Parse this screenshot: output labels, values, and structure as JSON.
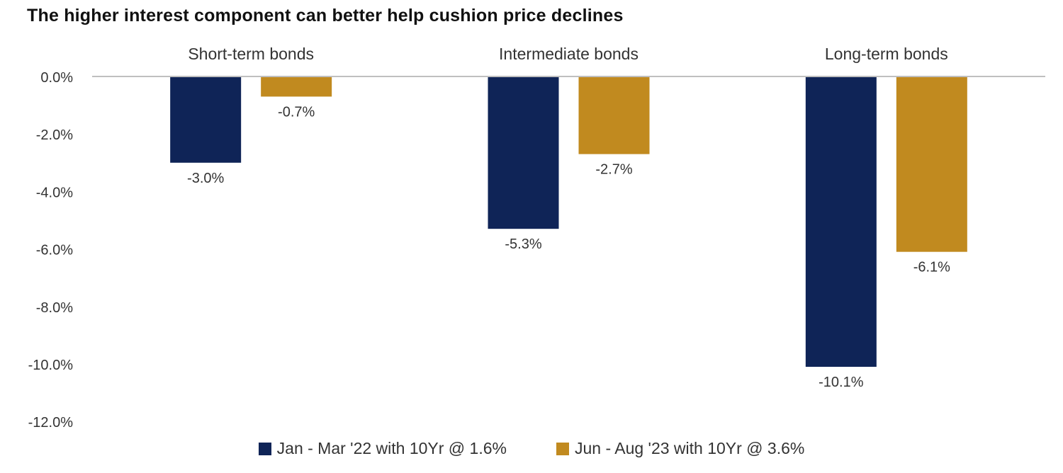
{
  "title": "The higher interest component can better help cushion price declines",
  "chart_data": {
    "type": "bar",
    "categories": [
      "Short-term bonds",
      "Intermediate bonds",
      "Long-term bonds"
    ],
    "series": [
      {
        "name": "Jan - Mar '22 with 10Yr @ 1.6%",
        "values": [
          -3.0,
          -5.3,
          -10.1
        ],
        "color": "#0f2457"
      },
      {
        "name": "Jun - Aug '23 with 10Yr @ 3.6%",
        "values": [
          -0.7,
          -2.7,
          -6.1
        ],
        "color": "#c18a1f"
      }
    ],
    "data_labels": [
      [
        "-3.0%",
        "-5.3%",
        "-10.1%"
      ],
      [
        "-0.7%",
        "-2.7%",
        "-6.1%"
      ]
    ],
    "yticks": [
      0,
      -2,
      -4,
      -6,
      -8,
      -10,
      -12
    ],
    "ytick_labels": [
      "0.0%",
      "-2.0%",
      "-4.0%",
      "-6.0%",
      "-8.0%",
      "-10.0%",
      "-12.0%"
    ],
    "ylim": [
      -12,
      0
    ],
    "grid": false,
    "legend_position": "bottom",
    "category_labels_position": "top"
  }
}
